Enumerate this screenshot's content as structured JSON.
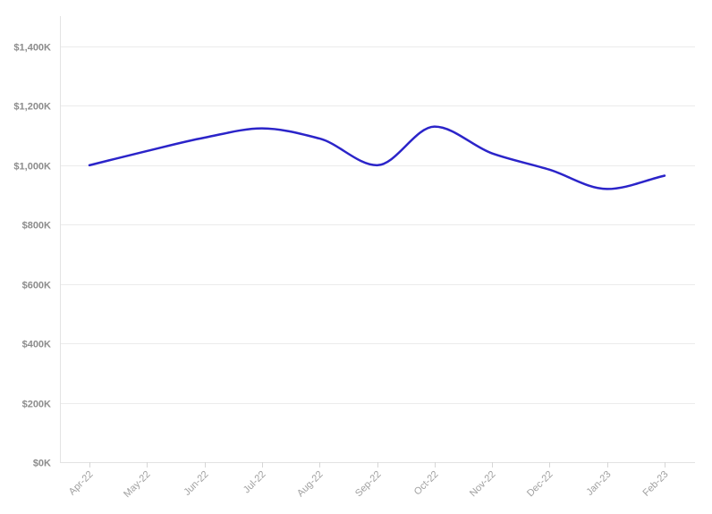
{
  "chart_data": {
    "type": "line",
    "title": "",
    "xlabel": "",
    "ylabel": "",
    "categories": [
      "Apr-22",
      "May-22",
      "Jun-22",
      "Jul-22",
      "Aug-22",
      "Sep-22",
      "Oct-22",
      "Nov-22",
      "Dec-22",
      "Jan-23",
      "Feb-23"
    ],
    "series": [
      {
        "values": [
          1000,
          1048,
          1093,
          1124,
          1090,
          1000,
          1130,
          1040,
          985,
          920,
          965
        ],
        "color": "#2b24c9"
      }
    ],
    "ylim": [
      0,
      1400
    ],
    "y_ticks": [
      0,
      200,
      400,
      600,
      800,
      1000,
      1200,
      1400
    ],
    "y_tick_labels": [
      "$0K",
      "$200K",
      "$400K",
      "$600K",
      "$800K",
      "$1,000K",
      "$1,200K",
      "$1,400K"
    ],
    "grid": true,
    "legend": "none",
    "curve": "smooth"
  }
}
